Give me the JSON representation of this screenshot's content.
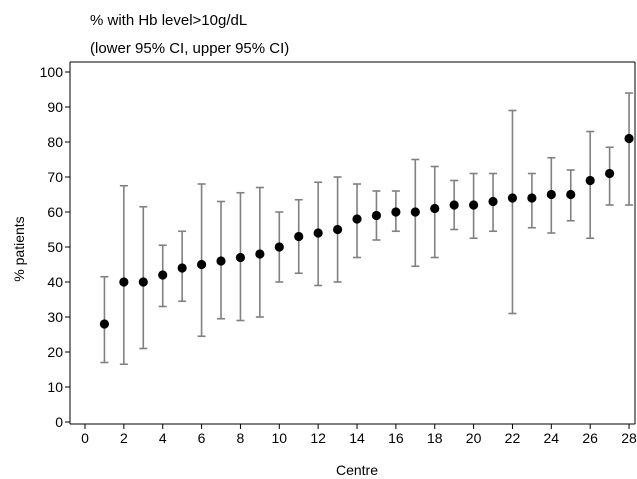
{
  "chart_data": {
    "type": "scatter",
    "title_lines": [
      "% with Hb level>10g/dL",
      "(lower 95% CI, upper 95% CI)"
    ],
    "xlabel": "Centre",
    "ylabel": "% patients",
    "xlim": [
      0,
      28
    ],
    "ylim": [
      0,
      100
    ],
    "x_ticks": [
      0,
      2,
      4,
      6,
      8,
      10,
      12,
      14,
      16,
      18,
      20,
      22,
      24,
      26,
      28
    ],
    "y_ticks": [
      0,
      10,
      20,
      30,
      40,
      50,
      60,
      70,
      80,
      90,
      100
    ],
    "grid": false,
    "colors": {
      "point": "#000000",
      "errorbar": "#808080",
      "axis": "#000000"
    },
    "points": [
      {
        "x": 1,
        "y": 28,
        "lower": 17,
        "upper": 41.5
      },
      {
        "x": 2,
        "y": 40,
        "lower": 16.5,
        "upper": 67.5
      },
      {
        "x": 3,
        "y": 40,
        "lower": 21,
        "upper": 61.5
      },
      {
        "x": 4,
        "y": 42,
        "lower": 33,
        "upper": 50.5
      },
      {
        "x": 5,
        "y": 44,
        "lower": 34.5,
        "upper": 54.5
      },
      {
        "x": 6,
        "y": 45,
        "lower": 24.5,
        "upper": 68
      },
      {
        "x": 7,
        "y": 46,
        "lower": 29.5,
        "upper": 63
      },
      {
        "x": 8,
        "y": 47,
        "lower": 29,
        "upper": 65.5
      },
      {
        "x": 9,
        "y": 48,
        "lower": 30,
        "upper": 67
      },
      {
        "x": 10,
        "y": 50,
        "lower": 40,
        "upper": 60
      },
      {
        "x": 11,
        "y": 53,
        "lower": 42.5,
        "upper": 63.5
      },
      {
        "x": 12,
        "y": 54,
        "lower": 39,
        "upper": 68.5
      },
      {
        "x": 13,
        "y": 55,
        "lower": 40,
        "upper": 70
      },
      {
        "x": 14,
        "y": 58,
        "lower": 47,
        "upper": 68
      },
      {
        "x": 15,
        "y": 59,
        "lower": 52,
        "upper": 66
      },
      {
        "x": 16,
        "y": 60,
        "lower": 54.5,
        "upper": 66
      },
      {
        "x": 17,
        "y": 60,
        "lower": 44.5,
        "upper": 75
      },
      {
        "x": 18,
        "y": 61,
        "lower": 47,
        "upper": 73
      },
      {
        "x": 19,
        "y": 62,
        "lower": 55,
        "upper": 69
      },
      {
        "x": 20,
        "y": 62,
        "lower": 52.5,
        "upper": 71
      },
      {
        "x": 21,
        "y": 63,
        "lower": 54.5,
        "upper": 71
      },
      {
        "x": 22,
        "y": 64,
        "lower": 31,
        "upper": 89
      },
      {
        "x": 23,
        "y": 64,
        "lower": 55.5,
        "upper": 71
      },
      {
        "x": 24,
        "y": 65,
        "lower": 54,
        "upper": 75.5
      },
      {
        "x": 25,
        "y": 65,
        "lower": 57.5,
        "upper": 72
      },
      {
        "x": 26,
        "y": 69,
        "lower": 52.5,
        "upper": 83
      },
      {
        "x": 27,
        "y": 71,
        "lower": 62,
        "upper": 78.5
      },
      {
        "x": 28,
        "y": 81,
        "lower": 62,
        "upper": 94
      }
    ]
  }
}
